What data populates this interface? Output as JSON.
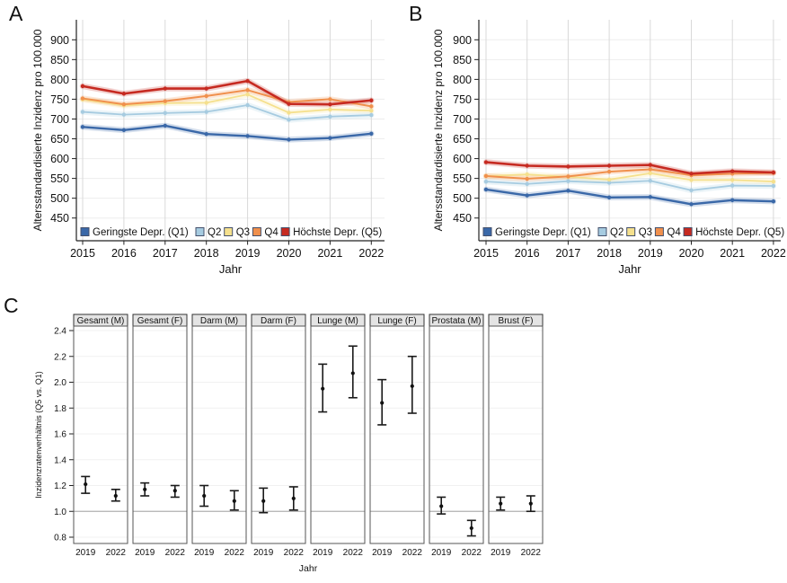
{
  "figure": {
    "panels": [
      {
        "label": "A"
      },
      {
        "label": "B"
      },
      {
        "label": "C"
      }
    ]
  },
  "chart_data": [
    {
      "id": "A",
      "type": "line",
      "xlabel": "Jahr",
      "ylabel": "Altersstandardisierte Inzidenz pro 100.000",
      "x": [
        2015,
        2016,
        2017,
        2018,
        2019,
        2020,
        2021,
        2022
      ],
      "yticks": [
        450,
        500,
        550,
        600,
        650,
        700,
        750,
        800,
        850,
        900
      ],
      "ylim": [
        398,
        950
      ],
      "grid": true,
      "legend_position": "bottom-inside",
      "series": [
        {
          "name": "Geringste Depr. (Q1)",
          "color": "#3a68a8",
          "values": [
            680,
            672,
            683,
            662,
            657,
            648,
            652,
            663
          ]
        },
        {
          "name": "Q2",
          "color": "#a6cbe0",
          "values": [
            718,
            711,
            715,
            718,
            735,
            698,
            706,
            710
          ]
        },
        {
          "name": "Q3",
          "color": "#f5e08d",
          "values": [
            749,
            734,
            740,
            741,
            762,
            716,
            724,
            721
          ]
        },
        {
          "name": "Q4",
          "color": "#f0904d",
          "values": [
            752,
            737,
            745,
            758,
            773,
            743,
            750,
            732
          ]
        },
        {
          "name": "Höchste Depr. (Q5)",
          "color": "#c62a21",
          "values": [
            783,
            764,
            777,
            777,
            796,
            738,
            737,
            747
          ]
        }
      ]
    },
    {
      "id": "B",
      "type": "line",
      "xlabel": "Jahr",
      "ylabel": "Altersstandardisierte Inzidenz pro 100.000",
      "x": [
        2015,
        2016,
        2017,
        2018,
        2019,
        2020,
        2021,
        2022
      ],
      "yticks": [
        450,
        500,
        550,
        600,
        650,
        700,
        750,
        800,
        850,
        900
      ],
      "ylim": [
        398,
        950
      ],
      "grid": true,
      "legend_position": "bottom-inside",
      "series": [
        {
          "name": "Geringste Depr. (Q1)",
          "color": "#3a68a8",
          "values": [
            522,
            507,
            519,
            502,
            503,
            485,
            495,
            492
          ]
        },
        {
          "name": "Q2",
          "color": "#a6cbe0",
          "values": [
            542,
            536,
            543,
            539,
            544,
            520,
            532,
            531
          ]
        },
        {
          "name": "Q3",
          "color": "#f5e08d",
          "values": [
            556,
            560,
            554,
            547,
            563,
            546,
            546,
            542
          ]
        },
        {
          "name": "Q4",
          "color": "#f0904d",
          "values": [
            556,
            549,
            555,
            567,
            573,
            558,
            562,
            564
          ]
        },
        {
          "name": "Höchste Depr. (Q5)",
          "color": "#c62a21",
          "values": [
            591,
            582,
            580,
            582,
            584,
            562,
            568,
            565
          ]
        }
      ]
    },
    {
      "id": "C",
      "type": "errorbar",
      "xlabel": "Jahr",
      "ylabel": "Inzidenzratenverhältnis (Q5 vs. Q1)",
      "yticks": [
        0.8,
        1.0,
        1.2,
        1.4,
        1.6,
        1.8,
        2.0,
        2.2,
        2.4
      ],
      "ylim": [
        0.76,
        2.44
      ],
      "ref_line": 1.0,
      "facets": [
        {
          "label": "Gesamt (M)",
          "points": [
            {
              "x": "2019",
              "est": 1.21,
              "lo": 1.14,
              "hi": 1.27
            },
            {
              "x": "2022",
              "est": 1.12,
              "lo": 1.08,
              "hi": 1.17
            }
          ]
        },
        {
          "label": "Gesamt (F)",
          "points": [
            {
              "x": "2019",
              "est": 1.17,
              "lo": 1.12,
              "hi": 1.22
            },
            {
              "x": "2022",
              "est": 1.16,
              "lo": 1.11,
              "hi": 1.2
            }
          ]
        },
        {
          "label": "Darm (M)",
          "points": [
            {
              "x": "2019",
              "est": 1.12,
              "lo": 1.04,
              "hi": 1.2
            },
            {
              "x": "2022",
              "est": 1.08,
              "lo": 1.01,
              "hi": 1.16
            }
          ]
        },
        {
          "label": "Darm (F)",
          "points": [
            {
              "x": "2019",
              "est": 1.08,
              "lo": 0.99,
              "hi": 1.18
            },
            {
              "x": "2022",
              "est": 1.1,
              "lo": 1.01,
              "hi": 1.19
            }
          ]
        },
        {
          "label": "Lunge (M)",
          "points": [
            {
              "x": "2019",
              "est": 1.95,
              "lo": 1.77,
              "hi": 2.14
            },
            {
              "x": "2022",
              "est": 2.07,
              "lo": 1.88,
              "hi": 2.28
            }
          ]
        },
        {
          "label": "Lunge (F)",
          "points": [
            {
              "x": "2019",
              "est": 1.84,
              "lo": 1.67,
              "hi": 2.02
            },
            {
              "x": "2022",
              "est": 1.97,
              "lo": 1.76,
              "hi": 2.2
            }
          ]
        },
        {
          "label": "Prostata (M)",
          "points": [
            {
              "x": "2019",
              "est": 1.04,
              "lo": 0.98,
              "hi": 1.11
            },
            {
              "x": "2022",
              "est": 0.87,
              "lo": 0.81,
              "hi": 0.93
            }
          ]
        },
        {
          "label": "Brust (F)",
          "points": [
            {
              "x": "2019",
              "est": 1.06,
              "lo": 1.01,
              "hi": 1.11
            },
            {
              "x": "2022",
              "est": 1.06,
              "lo": 1.0,
              "hi": 1.12
            }
          ]
        }
      ]
    }
  ],
  "colors": {
    "q1_blue": "#3a68a8",
    "q2_lightblue": "#a6cbe0",
    "q3_yellow": "#f5e08d",
    "q4_orange": "#f0904d",
    "q5_red": "#c62a21",
    "grid_vertical": "#d9d9d9",
    "grid_horizontal": "#ededed",
    "reference_line": "#b0b0b0",
    "facet_strip_bg": "#e4e4e4",
    "axis": "#222222"
  }
}
